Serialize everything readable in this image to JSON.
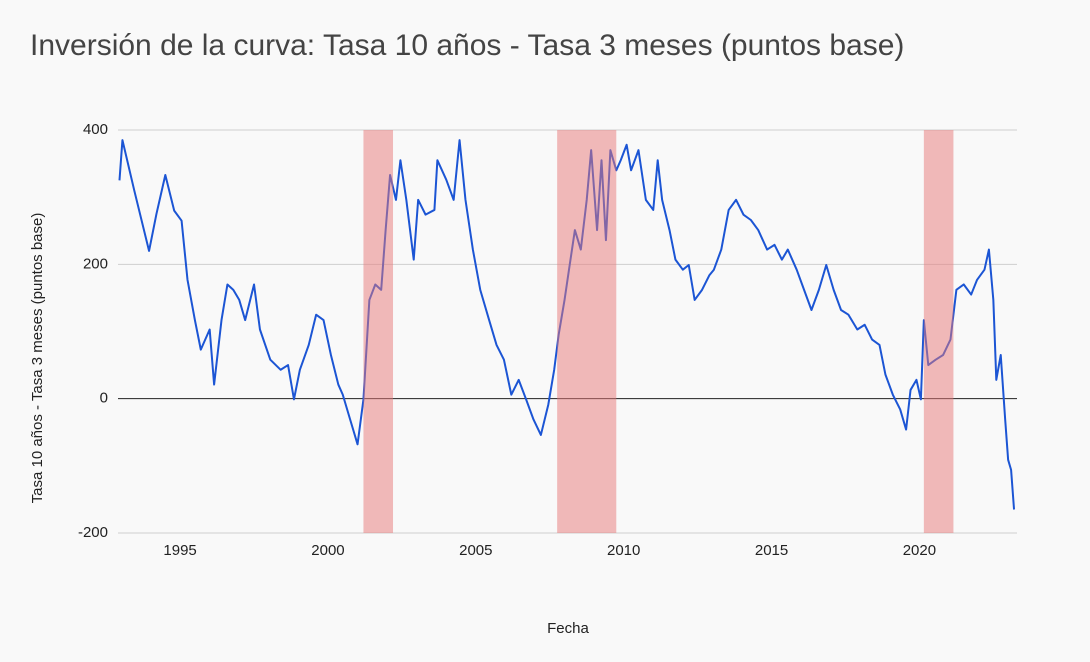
{
  "chart_data": {
    "type": "line",
    "title": "Inversión de la curva: Tasa 10 años - Tasa 3 meses (puntos base)",
    "x_label": "Fecha",
    "y_label": "Tasa 10 años - Tasa 3 meses (puntos base)",
    "color": "#1c55d4",
    "x": [
      1992.95,
      1993.05,
      1993.45,
      1993.95,
      1994.2,
      1994.5,
      1994.8,
      1995.05,
      1995.25,
      1995.5,
      1995.7,
      1996.0,
      1996.15,
      1996.4,
      1996.6,
      1996.8,
      1997.0,
      1997.2,
      1997.5,
      1997.7,
      1998.05,
      1998.4,
      1998.65,
      1998.85,
      1999.05,
      1999.35,
      1999.6,
      1999.85,
      2000.1,
      2000.35,
      2000.5,
      2000.75,
      2001.0,
      2001.2,
      2001.4,
      2001.6,
      2001.8,
      2001.95,
      2002.1,
      2002.3,
      2002.45,
      2002.65,
      2002.9,
      2003.05,
      2003.3,
      2003.6,
      2003.7,
      2004.0,
      2004.25,
      2004.45,
      2004.65,
      2004.9,
      2005.15,
      2005.45,
      2005.7,
      2005.95,
      2006.2,
      2006.45,
      2006.7,
      2006.95,
      2007.2,
      2007.45,
      2007.65,
      2007.8,
      2008.0,
      2008.15,
      2008.35,
      2008.55,
      2008.75,
      2008.9,
      2009.1,
      2009.25,
      2009.4,
      2009.55,
      2009.75,
      2009.9,
      2010.1,
      2010.25,
      2010.5,
      2010.75,
      2011.0,
      2011.15,
      2011.3,
      2011.55,
      2011.75,
      2012.0,
      2012.2,
      2012.4,
      2012.65,
      2012.9,
      2013.05,
      2013.3,
      2013.55,
      2013.8,
      2014.05,
      2014.3,
      2014.55,
      2014.85,
      2015.1,
      2015.35,
      2015.55,
      2015.85,
      2016.1,
      2016.35,
      2016.6,
      2016.85,
      2017.1,
      2017.35,
      2017.6,
      2017.9,
      2018.15,
      2018.4,
      2018.65,
      2018.85,
      2019.1,
      2019.35,
      2019.55,
      2019.7,
      2019.9,
      2020.05,
      2020.15,
      2020.3,
      2020.55,
      2020.8,
      2021.05,
      2021.25,
      2021.5,
      2021.75,
      2021.95,
      2022.2,
      2022.35,
      2022.5,
      2022.6,
      2022.75,
      2022.9,
      2023.0,
      2023.1,
      2023.2
    ],
    "values": [
      325,
      385,
      310,
      220,
      275,
      333,
      280,
      265,
      177,
      117,
      73,
      103,
      21,
      117,
      170,
      162,
      147,
      117,
      170,
      103,
      58,
      43,
      50,
      -1,
      43,
      80,
      125,
      117,
      65,
      21,
      6,
      -31,
      -68,
      -1,
      147,
      170,
      162,
      251,
      333,
      296,
      355,
      296,
      207,
      296,
      274,
      281,
      355,
      326,
      296,
      385,
      296,
      222,
      162,
      117,
      80,
      58,
      6,
      28,
      -1,
      -31,
      -54,
      -9,
      43,
      95,
      147,
      192,
      251,
      222,
      296,
      370,
      251,
      355,
      236,
      370,
      340,
      355,
      378,
      340,
      370,
      296,
      281,
      355,
      296,
      251,
      207,
      192,
      199,
      147,
      162,
      184,
      192,
      222,
      281,
      296,
      274,
      266,
      251,
      222,
      229,
      207,
      222,
      192,
      162,
      132,
      162,
      199,
      162,
      132,
      125,
      103,
      110,
      88,
      80,
      36,
      6,
      -16,
      -46,
      13,
      28,
      -1,
      117,
      50,
      58,
      65,
      88,
      162,
      170,
      155,
      177,
      192,
      222,
      147,
      28,
      65,
      -31,
      -91,
      -106,
      -165
    ],
    "shaded_ranges": [
      [
        2001.2,
        2002.2
      ],
      [
        2007.75,
        2009.75
      ],
      [
        2020.15,
        2021.15
      ]
    ],
    "shade_color": "rgba(232,120,120,0.5)",
    "xlim": [
      1992.9,
      2023.3
    ],
    "xticks": [
      1995,
      2000,
      2005,
      2010,
      2015,
      2020
    ],
    "ylim": [
      -200,
      400
    ],
    "yticks": [
      -200,
      0,
      200,
      400
    ],
    "grid": true
  }
}
